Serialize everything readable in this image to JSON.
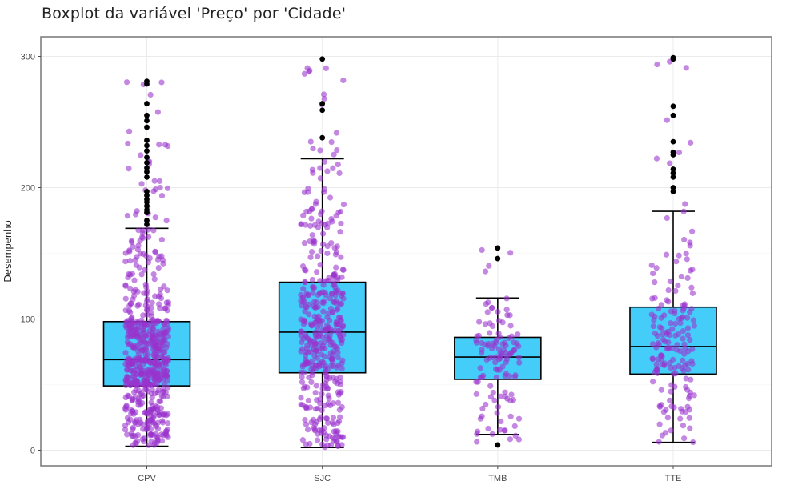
{
  "chart_data": {
    "type": "box",
    "title": "Boxplot da variável 'Preço' por 'Cidade'",
    "xlabel": "",
    "ylabel": "Desempenho",
    "ylim": [
      -10,
      310
    ],
    "yticks": [
      0,
      100,
      200,
      300
    ],
    "grid": true,
    "legend": "none",
    "categories": [
      "CPV",
      "SJC",
      "TMB",
      "TTE"
    ],
    "boxes": [
      {
        "category": "CPV",
        "whisker_low": 3,
        "q1": 49,
        "median": 69,
        "q3": 98,
        "whisker_high": 169,
        "outliers": [
          172,
          175,
          181,
          183,
          186,
          189,
          191,
          194,
          197,
          208,
          212,
          215,
          219,
          223,
          228,
          232,
          236,
          246,
          251,
          255,
          264,
          279,
          281
        ]
      },
      {
        "category": "SJC",
        "whisker_low": 2,
        "q1": 59,
        "median": 90,
        "q3": 128,
        "whisker_high": 222,
        "outliers": [
          238,
          259,
          264,
          298
        ]
      },
      {
        "category": "TMB",
        "whisker_low": 12,
        "q1": 54,
        "median": 71,
        "q3": 86,
        "whisker_high": 116,
        "outliers": [
          4,
          146,
          154
        ]
      },
      {
        "category": "TTE",
        "whisker_low": 6,
        "q1": 58,
        "median": 79,
        "q3": 109,
        "whisker_high": 182,
        "outliers": [
          197,
          200,
          208,
          211,
          214,
          225,
          227,
          235,
          255,
          262,
          298,
          299
        ]
      }
    ],
    "jitter_points": [
      {
        "category": "CPV",
        "count": 600,
        "min": 3,
        "max": 282
      },
      {
        "category": "SJC",
        "count": 430,
        "min": 2,
        "max": 299
      },
      {
        "category": "TMB",
        "count": 120,
        "min": 4,
        "max": 155
      },
      {
        "category": "TTE",
        "count": 170,
        "min": 6,
        "max": 300
      }
    ],
    "colors": {
      "box_fill": "#45cdf9",
      "box_stroke": "#000000",
      "jitter": "#9a32cd",
      "outlier": "#000000",
      "grid": "#ebebeb",
      "panel_border": "#7f7f7f"
    }
  }
}
